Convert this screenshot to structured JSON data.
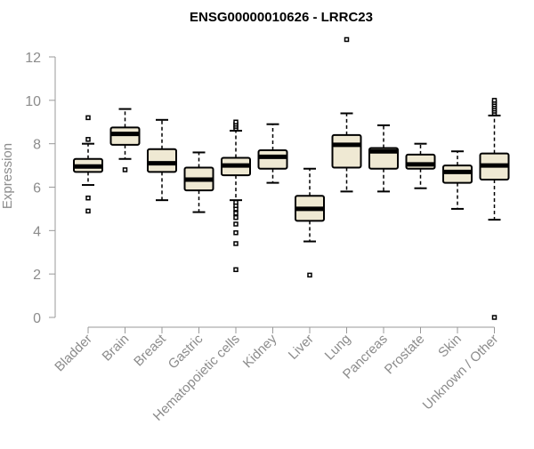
{
  "chart_data": {
    "type": "box",
    "title": "ENSG00000010626 - LRRC23",
    "xlabel": "",
    "ylabel": "Expression",
    "ylim": [
      0,
      12
    ],
    "yticks": [
      0,
      2,
      4,
      6,
      8,
      10,
      12
    ],
    "grid": false,
    "legend": "none",
    "colors": {
      "box_fill": "#efe9d3",
      "stroke": "#000000",
      "axis": "#999999",
      "tick_label": "#8c8c8c"
    },
    "categories": [
      "Bladder",
      "Brain",
      "Breast",
      "Gastric",
      "Hematopoietic cells",
      "Kidney",
      "Liver",
      "Lung",
      "Pancreas",
      "Prostate",
      "Skin",
      "Unknown / Other"
    ],
    "boxes": [
      {
        "category": "Bladder",
        "whisker_low": 6.1,
        "q1": 6.7,
        "median": 6.95,
        "q3": 7.3,
        "whisker_high": 8.0,
        "outliers": [
          4.9,
          5.5,
          8.2,
          9.2
        ]
      },
      {
        "category": "Brain",
        "whisker_low": 7.3,
        "q1": 7.95,
        "median": 8.45,
        "q3": 8.75,
        "whisker_high": 9.6,
        "outliers": [
          6.8
        ]
      },
      {
        "category": "Breast",
        "whisker_low": 5.4,
        "q1": 6.7,
        "median": 7.1,
        "q3": 7.75,
        "whisker_high": 9.1,
        "outliers": []
      },
      {
        "category": "Gastric",
        "whisker_low": 4.85,
        "q1": 5.85,
        "median": 6.35,
        "q3": 6.9,
        "whisker_high": 7.6,
        "outliers": []
      },
      {
        "category": "Hematopoietic cells",
        "whisker_low": 5.4,
        "q1": 6.55,
        "median": 7.0,
        "q3": 7.35,
        "whisker_high": 8.6,
        "outliers": [
          2.2,
          3.4,
          3.9,
          4.3,
          4.6,
          4.8,
          5.0,
          5.15,
          5.3,
          8.7,
          8.8,
          8.9,
          9.0
        ]
      },
      {
        "category": "Kidney",
        "whisker_low": 6.2,
        "q1": 6.85,
        "median": 7.4,
        "q3": 7.7,
        "whisker_high": 8.9,
        "outliers": []
      },
      {
        "category": "Liver",
        "whisker_low": 3.5,
        "q1": 4.45,
        "median": 5.0,
        "q3": 5.6,
        "whisker_high": 6.85,
        "outliers": [
          1.95
        ]
      },
      {
        "category": "Lung",
        "whisker_low": 5.8,
        "q1": 6.9,
        "median": 7.95,
        "q3": 8.4,
        "whisker_high": 9.4,
        "outliers": [
          12.8
        ]
      },
      {
        "category": "Pancreas",
        "whisker_low": 5.8,
        "q1": 6.85,
        "median": 7.65,
        "q3": 7.8,
        "whisker_high": 8.85,
        "outliers": []
      },
      {
        "category": "Prostate",
        "whisker_low": 5.95,
        "q1": 6.85,
        "median": 7.05,
        "q3": 7.5,
        "whisker_high": 8.0,
        "outliers": []
      },
      {
        "category": "Skin",
        "whisker_low": 5.0,
        "q1": 6.2,
        "median": 6.7,
        "q3": 7.0,
        "whisker_high": 7.65,
        "outliers": []
      },
      {
        "category": "Unknown / Other",
        "whisker_low": 4.5,
        "q1": 6.35,
        "median": 7.0,
        "q3": 7.55,
        "whisker_high": 9.3,
        "outliers": [
          0.0,
          9.4,
          9.5,
          9.6,
          9.7,
          9.8,
          9.9,
          10.0
        ]
      }
    ]
  }
}
